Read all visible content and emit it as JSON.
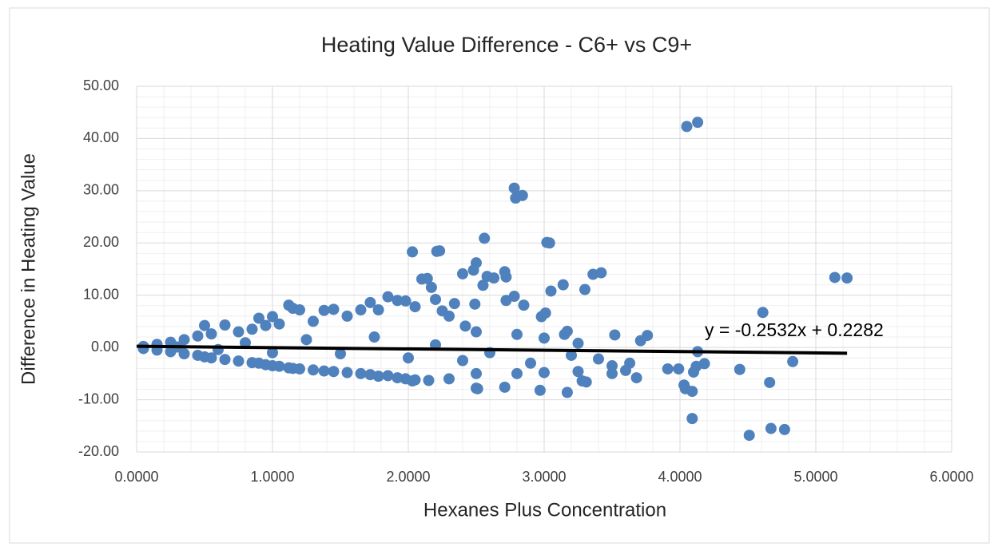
{
  "chart_data": {
    "type": "scatter",
    "title": "Heating Value Difference - C6+ vs C9+",
    "x_label": "Hexanes Plus Concentration",
    "y_label": "Difference in Heating Value",
    "color": "#4f81bd",
    "grid": true,
    "x": [
      4.05,
      4.13,
      2.78,
      2.79,
      2.84,
      3.02,
      3.04,
      2.56,
      2.03,
      2.21,
      2.23,
      2.5,
      2.48,
      2.4,
      2.71,
      2.72,
      2.63,
      2.58,
      2.1,
      2.14,
      2.17,
      2.55,
      3.14,
      3.36,
      3.42,
      3.05,
      3.3,
      5.14,
      5.23,
      4.61,
      2.78,
      2.85,
      2.72,
      2.49,
      2.34,
      2.2,
      2.25,
      3.01,
      2.98,
      2.42,
      3.52,
      3.76,
      3.71,
      3.17,
      3.15,
      4.13,
      3.91,
      3.99,
      4.1,
      4.12,
      4.18,
      4.44,
      4.83,
      4.03,
      4.04,
      4.09,
      4.66,
      4.09,
      4.51,
      4.67,
      4.77,
      3.17,
      2.97,
      3.28,
      3.31,
      2.71,
      2.5,
      2.51,
      2.03,
      2.15,
      3.68,
      3.5,
      3.63,
      3.4,
      3.6,
      0.05,
      0.05,
      0.15,
      0.15,
      0.25,
      0.25,
      0.35,
      0.35,
      0.45,
      0.45,
      0.5,
      0.5,
      0.55,
      0.55,
      0.65,
      0.65,
      0.75,
      0.75,
      0.85,
      0.85,
      0.9,
      0.9,
      0.95,
      0.95,
      1.0,
      1.0,
      1.05,
      1.05,
      1.12,
      1.12,
      1.15,
      1.15,
      1.2,
      1.2,
      1.3,
      1.3,
      1.38,
      1.38,
      1.45,
      1.45,
      1.55,
      1.55,
      1.65,
      1.65,
      1.72,
      1.72,
      1.78,
      1.78,
      1.85,
      1.85,
      1.92,
      1.92,
      1.98,
      1.98,
      2.05,
      2.05,
      2.3,
      2.3,
      2.5,
      2.5,
      2.8,
      2.8,
      3.0,
      3.0,
      3.25,
      3.25,
      0.3,
      0.6,
      0.8,
      1.0,
      1.25,
      1.5,
      1.75,
      2.0,
      2.2,
      2.4,
      2.6,
      2.9,
      3.2,
      3.5
    ],
    "values": [
      42.3,
      43.1,
      30.5,
      28.6,
      29.1,
      20.1,
      20.0,
      20.9,
      18.3,
      18.4,
      18.5,
      16.2,
      14.8,
      14.1,
      14.5,
      13.5,
      13.3,
      13.6,
      13.1,
      13.2,
      11.5,
      11.9,
      12.0,
      14.0,
      14.3,
      10.8,
      11.1,
      13.4,
      13.3,
      6.7,
      9.8,
      8.1,
      9.0,
      8.3,
      8.4,
      9.2,
      7.0,
      6.6,
      5.9,
      4.1,
      2.4,
      2.3,
      1.3,
      3.1,
      2.5,
      -0.8,
      -4.1,
      -4.1,
      -4.7,
      -3.6,
      -3.1,
      -4.2,
      -2.7,
      -7.2,
      -7.9,
      -8.4,
      -6.7,
      -13.6,
      -16.8,
      -15.5,
      -15.7,
      -8.6,
      -8.2,
      -6.4,
      -6.6,
      -7.6,
      -7.8,
      -7.9,
      -6.4,
      -6.3,
      -5.8,
      -5.0,
      -3.0,
      -2.2,
      -4.4,
      0.2,
      -0.2,
      0.6,
      -0.5,
      1.0,
      -0.8,
      1.5,
      -1.2,
      2.2,
      -1.5,
      4.2,
      -1.8,
      2.6,
      -2.0,
      4.3,
      -2.3,
      3.0,
      -2.6,
      3.5,
      -2.9,
      5.6,
      -3.0,
      4.2,
      -3.3,
      5.9,
      -3.5,
      4.5,
      -3.6,
      8.1,
      -3.9,
      7.5,
      -4.0,
      7.2,
      -4.1,
      5.0,
      -4.3,
      7.1,
      -4.5,
      7.3,
      -4.6,
      6.0,
      -4.8,
      7.2,
      -5.0,
      8.6,
      -5.2,
      7.2,
      -5.5,
      9.7,
      -5.4,
      9.0,
      -5.8,
      8.9,
      -6.0,
      7.8,
      -6.2,
      6.0,
      -6.0,
      3.0,
      -5.0,
      2.5,
      -5.0,
      1.8,
      -4.8,
      0.8,
      -4.6,
      0.1,
      -0.4,
      0.9,
      -1.0,
      1.5,
      -1.2,
      2.0,
      -2.0,
      0.5,
      -2.5,
      -1.0,
      -3.0,
      -1.5,
      -3.5
    ],
    "trendline": {
      "label": "y = -0.2532x + 0.2282",
      "slope": -0.2532,
      "intercept": 0.2282,
      "xrange": [
        0,
        5.23
      ],
      "color": "#000000"
    },
    "xlim": [
      0,
      6
    ],
    "xticks": [
      {
        "value": 0,
        "label": "0.0000"
      },
      {
        "value": 1,
        "label": "1.0000"
      },
      {
        "value": 2,
        "label": "2.0000"
      },
      {
        "value": 3,
        "label": "3.0000"
      },
      {
        "value": 4,
        "label": "4.0000"
      },
      {
        "value": 5,
        "label": "5.0000"
      },
      {
        "value": 6,
        "label": "6.0000"
      }
    ],
    "ylim": [
      -20,
      50
    ],
    "yticks": [
      {
        "value": -20,
        "label": "-20.00"
      },
      {
        "value": -10,
        "label": "-10.00"
      },
      {
        "value": 0,
        "label": "0.00"
      },
      {
        "value": 10,
        "label": "10.00"
      },
      {
        "value": 20,
        "label": "20.00"
      },
      {
        "value": 30,
        "label": "30.00"
      },
      {
        "value": 40,
        "label": "40.00"
      },
      {
        "value": 50,
        "label": "50.00"
      }
    ]
  }
}
